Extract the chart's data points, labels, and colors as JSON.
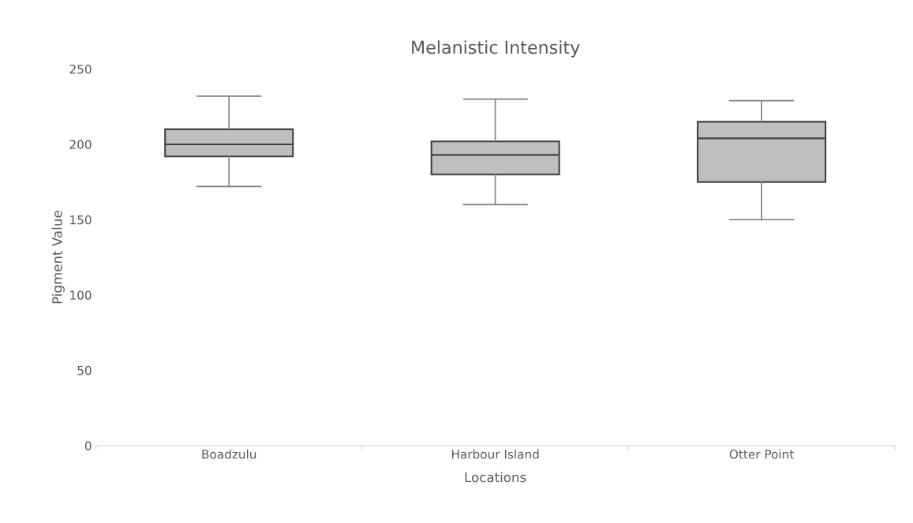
{
  "chart_data": {
    "type": "box",
    "title": "Melanistic Intensity",
    "xlabel": "Locations",
    "ylabel": "Pigment Value",
    "categories": [
      "Boadzulu",
      "Harbour Island",
      "Otter Point"
    ],
    "series": [
      {
        "color": "#bfbfbf",
        "boxes": [
          {
            "low": 172,
            "q1": 192,
            "median": 200,
            "q3": 210,
            "high": 232
          },
          {
            "low": 160,
            "q1": 180,
            "median": 193,
            "q3": 202,
            "high": 230
          },
          {
            "low": 150,
            "q1": 175,
            "median": 204,
            "q3": 215,
            "high": 229
          }
        ]
      }
    ],
    "ylim": [
      0,
      250
    ],
    "yticks": [
      0,
      50,
      100,
      150,
      200,
      250
    ],
    "grid": false,
    "legend": false
  }
}
